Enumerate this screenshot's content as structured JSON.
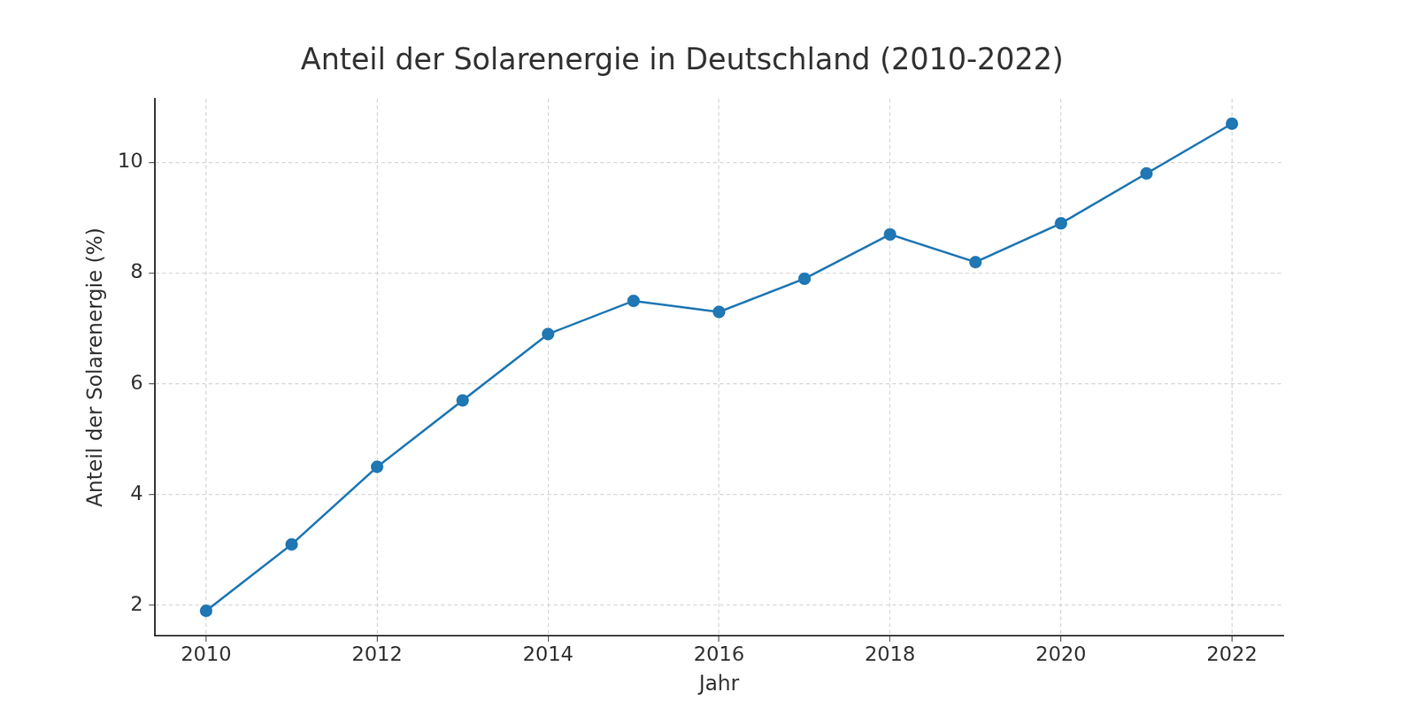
{
  "chart_data": {
    "type": "line",
    "title": "Anteil der Solarenergie in Deutschland (2010-2022)",
    "x_label": "Jahr",
    "y_label": "Anteil der Solarenergie (%)",
    "x": [
      2010,
      2011,
      2012,
      2013,
      2014,
      2015,
      2016,
      2017,
      2018,
      2019,
      2020,
      2021,
      2022
    ],
    "values": [
      1.9,
      3.1,
      4.5,
      5.7,
      6.9,
      7.5,
      7.3,
      7.9,
      8.7,
      8.2,
      8.9,
      9.8,
      10.7
    ],
    "color": "#1f77b4",
    "marker": "circle",
    "line_style": "solid",
    "xlim": [
      2009.4,
      2022.6
    ],
    "ylim": [
      1.45,
      11.15
    ],
    "xticks": [
      2010,
      2012,
      2014,
      2016,
      2018,
      2020,
      2022
    ],
    "yticks": [
      2,
      4,
      6,
      8,
      10
    ],
    "grid": true
  }
}
